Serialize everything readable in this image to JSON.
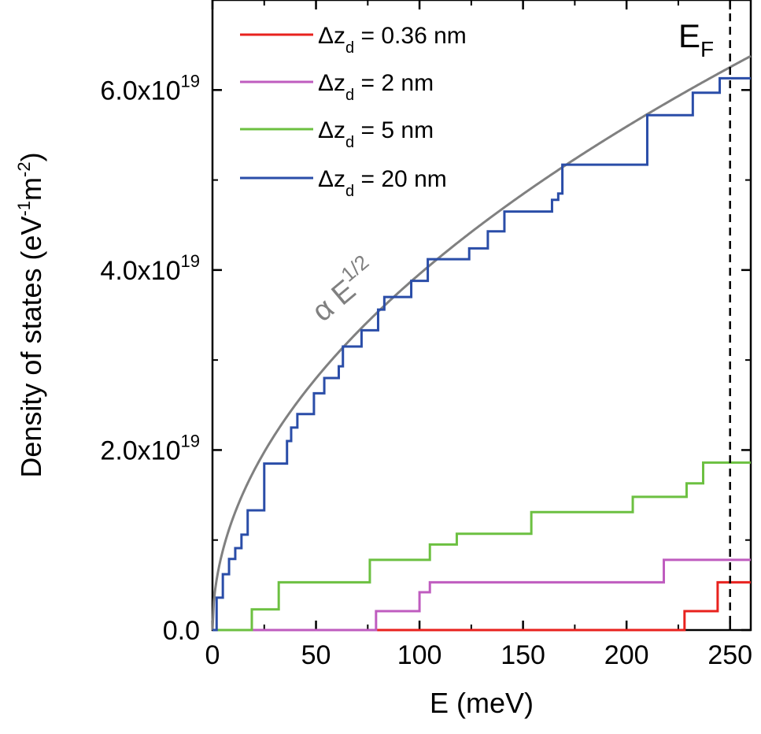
{
  "chart_data": {
    "type": "line",
    "xlabel": "E (meV)",
    "ylabel": "Density of states (eV⁻¹m⁻²)",
    "xlim": [
      0,
      260
    ],
    "ylim": [
      0,
      7e+19
    ],
    "x_ticks": [
      0,
      50,
      100,
      150,
      200,
      250
    ],
    "x_tick_labels": [
      "0",
      "50",
      "100",
      "150",
      "200",
      "250"
    ],
    "y_ticks": [
      0,
      2e+19,
      4e+19,
      6e+19
    ],
    "y_tick_labels": [
      {
        "mantissa": "0.0",
        "exponent": ""
      },
      {
        "mantissa": "2.0x10",
        "exponent": "19"
      },
      {
        "mantissa": "4.0x10",
        "exponent": "19"
      },
      {
        "mantissa": "6.0x10",
        "exponent": "19"
      }
    ],
    "annotations": {
      "fermi_label": "E",
      "fermi_sub": "F",
      "fermi_energy": 250,
      "sqrt_label_main": "α E",
      "sqrt_label_sup": "1/2"
    },
    "sqrt_curve": {
      "color": "#808080",
      "coefficient": 3.955e+18,
      "label": "α E^1/2"
    },
    "series": [
      {
        "name": "Δz_d = 0.36 nm",
        "legend_main": "Δz",
        "legend_sub": "d",
        "legend_tail": " = 0.36 nm",
        "color": "#e8221e",
        "steps": [
          [
            0,
            0
          ],
          [
            228,
            2.1e+18
          ],
          [
            244,
            5.3e+18
          ]
        ]
      },
      {
        "name": "Δz_d = 2 nm",
        "legend_main": "Δz",
        "legend_sub": "d",
        "legend_tail": " = 2 nm",
        "color": "#bf5cbf",
        "steps": [
          [
            0,
            0
          ],
          [
            79,
            2.1e+18
          ],
          [
            100,
            4.2e+18
          ],
          [
            105,
            5.3e+18
          ],
          [
            218,
            7.8e+18
          ]
        ]
      },
      {
        "name": "Δz_d = 5 nm",
        "legend_main": "Δz",
        "legend_sub": "d",
        "legend_tail": " = 5 nm",
        "color": "#6cc041",
        "steps": [
          [
            0,
            0
          ],
          [
            19,
            2.3e+18
          ],
          [
            32,
            5.3e+18
          ],
          [
            76,
            7.8e+18
          ],
          [
            105,
            9.5e+18
          ],
          [
            118,
            1.07e+19
          ],
          [
            154,
            1.31e+19
          ],
          [
            203,
            1.48e+19
          ],
          [
            229,
            1.63e+19
          ],
          [
            237,
            1.86e+19
          ]
        ]
      },
      {
        "name": "Δz_d = 20 nm",
        "legend_main": "Δz",
        "legend_sub": "d",
        "legend_tail": " = 20 nm",
        "color": "#2a4da8",
        "steps": [
          [
            0,
            0
          ],
          [
            2,
            3.6e+18
          ],
          [
            5,
            6.2e+18
          ],
          [
            8,
            7.9e+18
          ],
          [
            11,
            9.1e+18
          ],
          [
            14,
            1.06e+19
          ],
          [
            17,
            1.33e+19
          ],
          [
            25,
            1.85e+19
          ],
          [
            36,
            2.1e+19
          ],
          [
            38,
            2.25e+19
          ],
          [
            41,
            2.4e+19
          ],
          [
            49,
            2.63e+19
          ],
          [
            54,
            2.8e+19
          ],
          [
            61,
            2.93e+19
          ],
          [
            63,
            3.15e+19
          ],
          [
            72,
            3.33e+19
          ],
          [
            80,
            3.56e+19
          ],
          [
            83,
            3.7e+19
          ],
          [
            96,
            3.88e+19
          ],
          [
            104,
            4.12e+19
          ],
          [
            113,
            4.12e+19
          ],
          [
            124,
            4.24e+19
          ],
          [
            133,
            4.43e+19
          ],
          [
            141,
            4.65e+19
          ],
          [
            153,
            4.65e+19
          ],
          [
            164,
            4.78e+19
          ],
          [
            167,
            4.85e+19
          ],
          [
            169,
            5.17e+19
          ],
          [
            184,
            5.17e+19
          ],
          [
            210,
            5.72e+19
          ],
          [
            232,
            5.97e+19
          ],
          [
            245,
            6.13e+19
          ]
        ]
      }
    ],
    "legend_position": "top-left"
  }
}
